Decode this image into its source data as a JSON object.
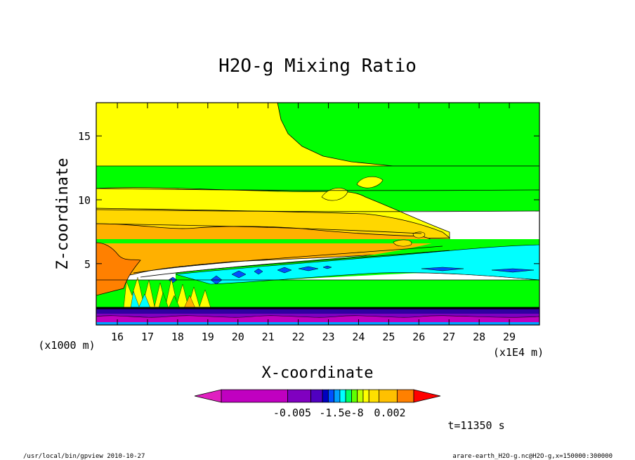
{
  "chart_data": {
    "type": "heatmap",
    "title": "H2O-g Mixing Ratio",
    "xlabel": "X-coordinate",
    "ylabel": "Z-coordinate",
    "x_unit": "(x1E4 m)",
    "y_unit": "(x1000 m)",
    "xlim": [
      15.3,
      30.0
    ],
    "ylim": [
      0.2,
      17.6
    ],
    "x_ticks": [
      16,
      17,
      18,
      19,
      20,
      21,
      22,
      23,
      24,
      25,
      26,
      27,
      28,
      29
    ],
    "y_ticks": [
      5,
      10,
      15
    ],
    "colorbar": {
      "tick_labels": [
        "-0.005",
        "-1.5e-8",
        "0.002"
      ],
      "colors": [
        "#e020c0",
        "#c000c0",
        "#8000c0",
        "#5000c0",
        "#0000c0",
        "#0050ff",
        "#00a0ff",
        "#00ffff",
        "#00ff60",
        "#60ff00",
        "#c0ff00",
        "#ffff00",
        "#ffe000",
        "#ffc000",
        "#ff8000",
        "#ff0000"
      ]
    },
    "annotation": "t=11350 s",
    "bands": [
      {
        "level": "yellow",
        "color": "#ffff00",
        "z_range": [
          12.6,
          17.6
        ]
      },
      {
        "level": "green",
        "color": "#00ff00",
        "z_range": [
          10.9,
          12.6
        ]
      },
      {
        "level": "yellow",
        "color": "#ffff00",
        "z_range": [
          9.3,
          10.9
        ]
      },
      {
        "level": "gold",
        "color": "#ffd700",
        "z_range": [
          8.0,
          9.3
        ]
      },
      {
        "level": "orange",
        "color": "#ffb000",
        "z_range": [
          4.3,
          8.0
        ]
      },
      {
        "level": "cyan",
        "color": "#00ffff",
        "z_range": [
          3.0,
          6.6
        ]
      },
      {
        "level": "green",
        "color": "#00ff00",
        "z_range": [
          1.5,
          3.0
        ]
      },
      {
        "level": "purple",
        "color": "#8000c0",
        "z_range": [
          0.2,
          1.5
        ]
      }
    ]
  },
  "footer": {
    "left": "/usr/local/bin/gpview  2010-10-27",
    "right": "arare-earth_H2O-g.nc@H2O-g,x=150000:300000"
  }
}
